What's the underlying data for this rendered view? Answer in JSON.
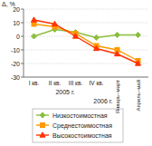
{
  "chart_data": {
    "type": "line",
    "y_label": "Δ, %",
    "categories": [
      "I кв.",
      "II кв.",
      "III кв.",
      "IV кв.",
      "Январь–март",
      "Апрель–май"
    ],
    "annotations": [
      "2005 г.",
      "2006 г."
    ],
    "series": [
      {
        "name": "Низкостоимостная",
        "color": "#8cbf3f",
        "marker": "diamond",
        "values": [
          0,
          5,
          3,
          -1,
          1,
          1
        ]
      },
      {
        "name": "Среднестоимостная",
        "color": "#ff9900",
        "marker": "square",
        "values": [
          9,
          7,
          2,
          -7,
          -10,
          -18
        ]
      },
      {
        "name": "Высокостоимостная",
        "color": "#ff3300",
        "marker": "triangle",
        "values": [
          12,
          9,
          0,
          -9,
          -13,
          -20
        ]
      }
    ],
    "ylim": [
      -30,
      20
    ],
    "yticks": [
      -30,
      -20,
      -10,
      0,
      10,
      20
    ],
    "grid": true,
    "legend": "bottom"
  }
}
